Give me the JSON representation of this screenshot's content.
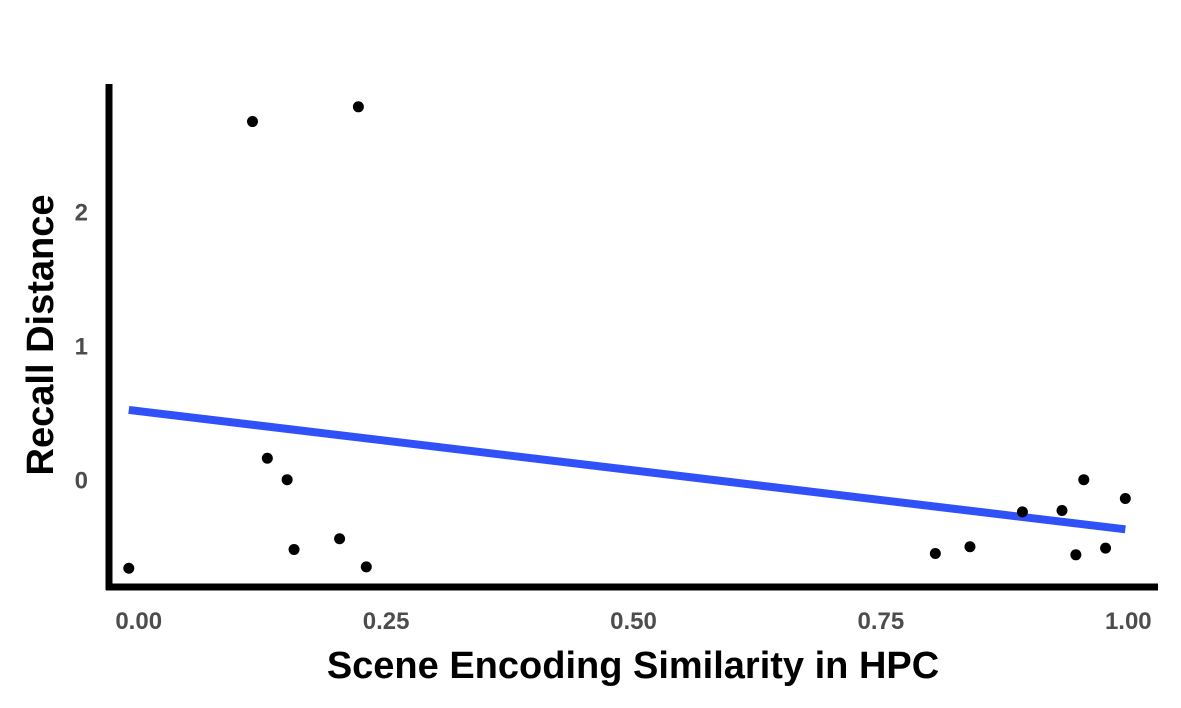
{
  "chart_data": {
    "type": "scatter",
    "xlabel": "Scene Encoding Similarity in HPC",
    "ylabel": "Recall Distance",
    "xlim": [
      -0.03,
      1.03
    ],
    "ylim": [
      -0.8,
      2.95
    ],
    "x_ticks": [
      0.0,
      0.25,
      0.5,
      0.75,
      1.0
    ],
    "x_tick_labels": [
      "0.00",
      "0.25",
      "0.50",
      "0.75",
      "1.00"
    ],
    "y_ticks": [
      0,
      1,
      2
    ],
    "y_tick_labels": [
      "0",
      "1",
      "2"
    ],
    "grid": false,
    "legend": "none",
    "point_color": "#000000",
    "trend_color": "#3050F8",
    "points": [
      {
        "x": -0.01,
        "y": -0.66
      },
      {
        "x": 0.115,
        "y": 2.67
      },
      {
        "x": 0.13,
        "y": 0.16
      },
      {
        "x": 0.15,
        "y": 0.0
      },
      {
        "x": 0.157,
        "y": -0.52
      },
      {
        "x": 0.203,
        "y": -0.44
      },
      {
        "x": 0.222,
        "y": 2.78
      },
      {
        "x": 0.23,
        "y": -0.65
      },
      {
        "x": 0.805,
        "y": -0.55
      },
      {
        "x": 0.84,
        "y": -0.5
      },
      {
        "x": 0.893,
        "y": -0.24
      },
      {
        "x": 0.933,
        "y": -0.23
      },
      {
        "x": 0.947,
        "y": -0.56
      },
      {
        "x": 0.955,
        "y": 0.0
      },
      {
        "x": 0.977,
        "y": -0.51
      },
      {
        "x": 0.997,
        "y": -0.14
      }
    ],
    "trend_line": {
      "x": [
        -0.01,
        0.997
      ],
      "y": [
        0.52,
        -0.37
      ]
    }
  }
}
